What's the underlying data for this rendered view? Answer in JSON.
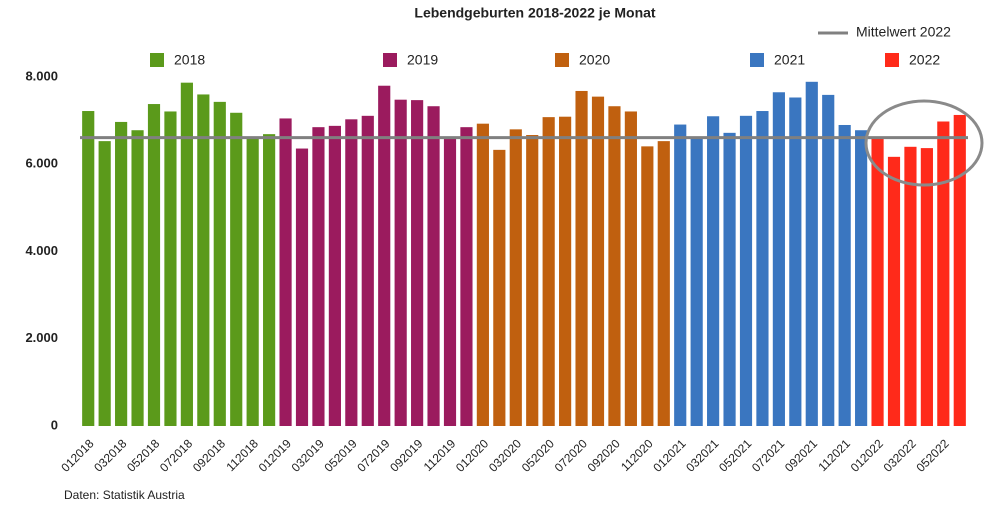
{
  "chart_data": {
    "type": "bar",
    "title": "Lebendgeburten 2018-2022 je Monat",
    "source": "Daten: Statistik Austria",
    "categories": [
      "012018",
      null,
      "032018",
      null,
      "052018",
      null,
      "072018",
      null,
      "092018",
      null,
      "112018",
      null,
      "012019",
      null,
      "032019",
      null,
      "052019",
      null,
      "072019",
      null,
      "092019",
      null,
      "112019",
      null,
      "012020",
      null,
      "032020",
      null,
      "052020",
      null,
      "072020",
      null,
      "092020",
      null,
      "112020",
      null,
      "012021",
      null,
      "032021",
      null,
      "052021",
      null,
      "072021",
      null,
      "092021",
      null,
      "112021",
      null,
      "012022",
      null,
      "032022",
      null,
      "052022",
      null
    ],
    "series": [
      {
        "name": "2018",
        "color": "#5b9a1b",
        "values": [
          7220,
          6530,
          6970,
          6780,
          7380,
          7210,
          7870,
          7600,
          7430,
          7180,
          6620,
          6690,
          null,
          null,
          null,
          null,
          null,
          null,
          null,
          null,
          null,
          null,
          null,
          null,
          null,
          null,
          null,
          null,
          null,
          null,
          null,
          null,
          null,
          null,
          null,
          null,
          null,
          null,
          null,
          null,
          null,
          null,
          null,
          null,
          null,
          null,
          null,
          null,
          null,
          null,
          null,
          null,
          null,
          null
        ]
      },
      {
        "name": "2019",
        "color": "#9b1b5e",
        "values": [
          null,
          null,
          null,
          null,
          null,
          null,
          null,
          null,
          null,
          null,
          null,
          null,
          7050,
          6360,
          6850,
          6880,
          7030,
          7110,
          7800,
          7480,
          7470,
          7330,
          6590,
          6850,
          null,
          null,
          null,
          null,
          null,
          null,
          null,
          null,
          null,
          null,
          null,
          null,
          null,
          null,
          null,
          null,
          null,
          null,
          null,
          null,
          null,
          null,
          null,
          null,
          null,
          null,
          null,
          null,
          null,
          null
        ]
      },
      {
        "name": "2020",
        "color": "#c0600f",
        "values": [
          null,
          null,
          null,
          null,
          null,
          null,
          null,
          null,
          null,
          null,
          null,
          null,
          null,
          null,
          null,
          null,
          null,
          null,
          null,
          null,
          null,
          null,
          null,
          null,
          6930,
          6330,
          6800,
          6670,
          7080,
          7090,
          7680,
          7550,
          7330,
          7210,
          6410,
          6530,
          null,
          null,
          null,
          null,
          null,
          null,
          null,
          null,
          null,
          null,
          null,
          null,
          null,
          null,
          null,
          null,
          null,
          null
        ]
      },
      {
        "name": "2021",
        "color": "#3a76c0",
        "values": [
          null,
          null,
          null,
          null,
          null,
          null,
          null,
          null,
          null,
          null,
          null,
          null,
          null,
          null,
          null,
          null,
          null,
          null,
          null,
          null,
          null,
          null,
          null,
          null,
          null,
          null,
          null,
          null,
          null,
          null,
          null,
          null,
          null,
          null,
          null,
          null,
          6910,
          6620,
          7100,
          6720,
          7110,
          7220,
          7650,
          7530,
          7890,
          7590,
          6900,
          6780,
          null,
          null,
          null,
          null,
          null,
          null
        ]
      },
      {
        "name": "2022",
        "color": "#ff2a1a",
        "values": [
          null,
          null,
          null,
          null,
          null,
          null,
          null,
          null,
          null,
          null,
          null,
          null,
          null,
          null,
          null,
          null,
          null,
          null,
          null,
          null,
          null,
          null,
          null,
          null,
          null,
          null,
          null,
          null,
          null,
          null,
          null,
          null,
          null,
          null,
          null,
          null,
          null,
          null,
          null,
          null,
          null,
          null,
          null,
          null,
          null,
          null,
          null,
          null,
          6600,
          6170,
          6400,
          6370,
          6980,
          7130
        ]
      }
    ],
    "reference_line": {
      "name": "Mittelwert 2022",
      "value": 6610,
      "color": "#808080"
    },
    "ylim": [
      0,
      8000
    ],
    "yticks": [
      0,
      {
        "value": 2000,
        "label": "2.000"
      },
      {
        "value": 4000,
        "label": "4.000"
      },
      {
        "value": 6000,
        "label": "6.000"
      },
      {
        "value": 8000,
        "label": "8.000"
      }
    ]
  }
}
